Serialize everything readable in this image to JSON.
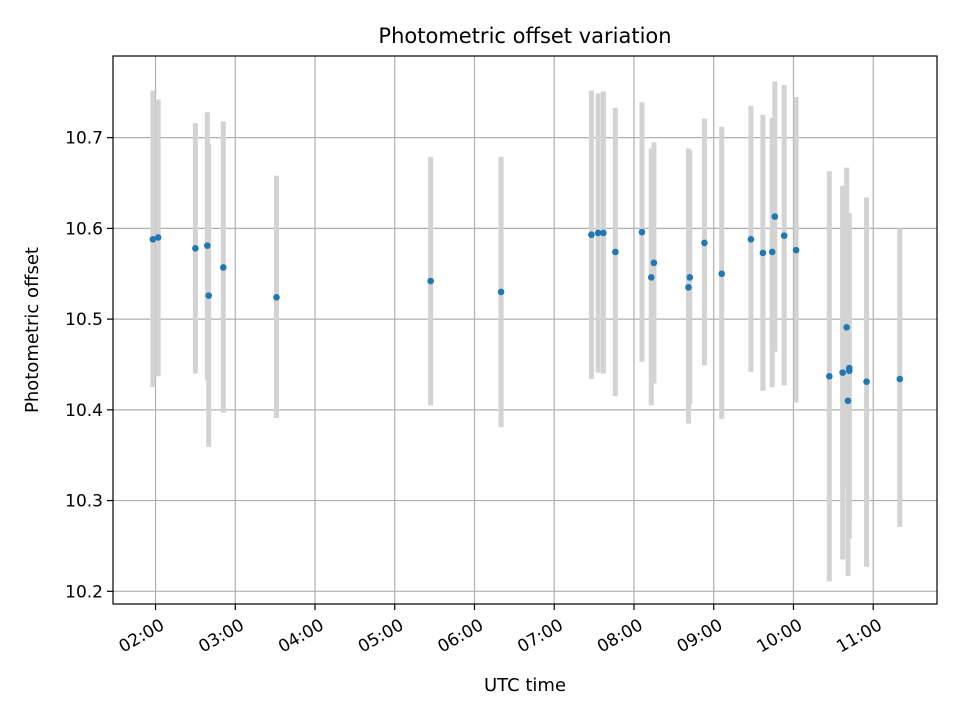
{
  "chart_data": {
    "type": "scatter",
    "title": "Photometric offset variation",
    "xlabel": "UTC time",
    "ylabel": "Photometric offset",
    "x_axis_type": "time",
    "xlim": [
      "01:28",
      "11:48"
    ],
    "ylim": [
      10.186,
      10.79
    ],
    "grid": true,
    "x_ticks": [
      "02:00",
      "03:00",
      "04:00",
      "05:00",
      "06:00",
      "07:00",
      "08:00",
      "09:00",
      "10:00",
      "11:00"
    ],
    "y_ticks": [
      10.2,
      10.3,
      10.4,
      10.5,
      10.6,
      10.7
    ],
    "y_tick_labels": [
      "10.2",
      "10.3",
      "10.4",
      "10.5",
      "10.6",
      "10.7"
    ],
    "colors": {
      "points": "#1f77b4",
      "error_bars": "#d3d3d3",
      "grid": "#b0b0b0"
    },
    "points": [
      {
        "x": "01:58",
        "y": 10.588,
        "yerr_low": 10.425,
        "yerr_high": 10.752
      },
      {
        "x": "02:02",
        "y": 10.59,
        "yerr_low": 10.437,
        "yerr_high": 10.742
      },
      {
        "x": "02:30",
        "y": 10.578,
        "yerr_low": 10.44,
        "yerr_high": 10.716
      },
      {
        "x": "02:39",
        "y": 10.581,
        "yerr_low": 10.433,
        "yerr_high": 10.728
      },
      {
        "x": "02:40",
        "y": 10.526,
        "yerr_low": 10.359,
        "yerr_high": 10.693
      },
      {
        "x": "02:51",
        "y": 10.557,
        "yerr_low": 10.397,
        "yerr_high": 10.718
      },
      {
        "x": "03:31",
        "y": 10.524,
        "yerr_low": 10.391,
        "yerr_high": 10.658
      },
      {
        "x": "05:27",
        "y": 10.542,
        "yerr_low": 10.405,
        "yerr_high": 10.679
      },
      {
        "x": "06:20",
        "y": 10.53,
        "yerr_low": 10.381,
        "yerr_high": 10.679
      },
      {
        "x": "07:28",
        "y": 10.593,
        "yerr_low": 10.434,
        "yerr_high": 10.752
      },
      {
        "x": "07:33",
        "y": 10.595,
        "yerr_low": 10.441,
        "yerr_high": 10.749
      },
      {
        "x": "07:37",
        "y": 10.595,
        "yerr_low": 10.44,
        "yerr_high": 10.751
      },
      {
        "x": "07:46",
        "y": 10.574,
        "yerr_low": 10.415,
        "yerr_high": 10.733
      },
      {
        "x": "08:06",
        "y": 10.596,
        "yerr_low": 10.453,
        "yerr_high": 10.739
      },
      {
        "x": "08:13",
        "y": 10.546,
        "yerr_low": 10.405,
        "yerr_high": 10.688
      },
      {
        "x": "08:15",
        "y": 10.562,
        "yerr_low": 10.429,
        "yerr_high": 10.695
      },
      {
        "x": "08:41",
        "y": 10.535,
        "yerr_low": 10.385,
        "yerr_high": 10.688
      },
      {
        "x": "08:42",
        "y": 10.546,
        "yerr_low": 10.406,
        "yerr_high": 10.686
      },
      {
        "x": "08:53",
        "y": 10.584,
        "yerr_low": 10.449,
        "yerr_high": 10.721
      },
      {
        "x": "09:06",
        "y": 10.55,
        "yerr_low": 10.39,
        "yerr_high": 10.712
      },
      {
        "x": "09:28",
        "y": 10.588,
        "yerr_low": 10.442,
        "yerr_high": 10.735
      },
      {
        "x": "09:37",
        "y": 10.573,
        "yerr_low": 10.421,
        "yerr_high": 10.725
      },
      {
        "x": "09:44",
        "y": 10.574,
        "yerr_low": 10.425,
        "yerr_high": 10.722
      },
      {
        "x": "09:46",
        "y": 10.613,
        "yerr_low": 10.464,
        "yerr_high": 10.762
      },
      {
        "x": "09:53",
        "y": 10.592,
        "yerr_low": 10.427,
        "yerr_high": 10.758
      },
      {
        "x": "10:02",
        "y": 10.576,
        "yerr_low": 10.408,
        "yerr_high": 10.745
      },
      {
        "x": "10:27",
        "y": 10.437,
        "yerr_low": 10.211,
        "yerr_high": 10.663
      },
      {
        "x": "10:37",
        "y": 10.441,
        "yerr_low": 10.235,
        "yerr_high": 10.647
      },
      {
        "x": "10:40",
        "y": 10.491,
        "yerr_low": 10.315,
        "yerr_high": 10.667
      },
      {
        "x": "10:41",
        "y": 10.41,
        "yerr_low": 10.217,
        "yerr_high": 10.605
      },
      {
        "x": "10:42",
        "y": 10.443,
        "yerr_low": 10.28,
        "yerr_high": 10.608
      },
      {
        "x": "10:42",
        "y": 10.446,
        "yerr_low": 10.258,
        "yerr_high": 10.617
      },
      {
        "x": "10:55",
        "y": 10.431,
        "yerr_low": 10.227,
        "yerr_high": 10.634
      },
      {
        "x": "11:20",
        "y": 10.434,
        "yerr_low": 10.271,
        "yerr_high": 10.6
      }
    ]
  }
}
